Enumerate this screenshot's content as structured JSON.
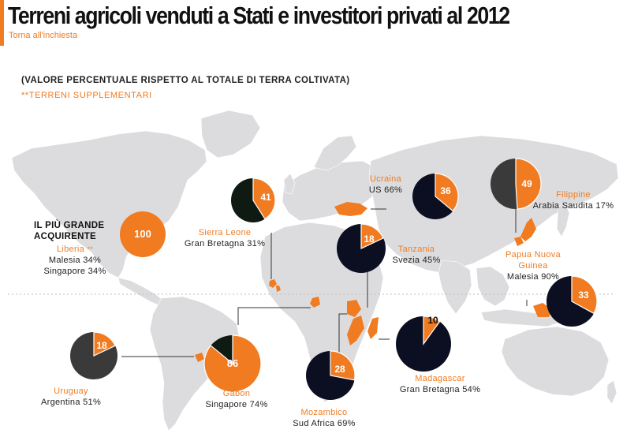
{
  "header": {
    "title": "Terreni agricoli venduti a Stati e investitori privati al 2012",
    "back_link": "Torna all'inchiesta"
  },
  "legend": {
    "subtitle": "(VALORE PERCENTUALE RISPETTO AL TOTALE DI TERRA COLTIVATA)",
    "supplementary": "**TERRENI SUPPLEMENTARI"
  },
  "largest_buyer_label": "IL PIÙ GRANDE ACQUIRENTE",
  "colors": {
    "orange": "#f07b21",
    "navy": "#0c0f22",
    "gray": "#3a3a3a",
    "darkgreen": "#0f1a12",
    "land": "#dcdcde"
  },
  "countries": [
    {
      "name": "Liberia",
      "value": "100",
      "stars": "**",
      "buyers": [
        "Malesia 34%",
        "Singapore 34%"
      ]
    },
    {
      "name": "Sierra Leone",
      "value": "41",
      "buyers": [
        "Gran Bretagna 31%"
      ]
    },
    {
      "name": "Ucraina",
      "value": "36",
      "buyers": [
        "US 66%"
      ]
    },
    {
      "name": "Filippine",
      "value": "49",
      "buyers": [
        "Arabia Saudita 17%"
      ]
    },
    {
      "name": "Tanzania",
      "value": "18",
      "buyers": [
        "Svezia 45%"
      ]
    },
    {
      "name": "Papua Nuova Guinea",
      "value": "33",
      "buyers": [
        "Malesia 90%"
      ]
    },
    {
      "name": "Madagascar",
      "value": "10",
      "buyers": [
        "Gran Bretagna 54%"
      ]
    },
    {
      "name": "Mozambico",
      "value": "28",
      "buyers": [
        "Sud Africa 69%"
      ]
    },
    {
      "name": "Gabon",
      "value": "86",
      "buyers": [
        "Singapore 74%"
      ]
    },
    {
      "name": "Uruguay",
      "value": "18",
      "buyers": [
        "Argentina 51%"
      ]
    }
  ],
  "pies": [
    {
      "country": "Liberia",
      "value": 100,
      "base": "orange",
      "label": "100"
    },
    {
      "country": "Sierra Leone",
      "value": 41,
      "base": "darkgreen",
      "label": "41"
    },
    {
      "country": "Ucraina",
      "value": 36,
      "base": "navy",
      "label": "36"
    },
    {
      "country": "Filippine",
      "value": 49,
      "base": "gray",
      "label": "49"
    },
    {
      "country": "Tanzania",
      "value": 18,
      "base": "navy",
      "label": "18"
    },
    {
      "country": "Papua Nuova Guinea",
      "value": 33,
      "base": "navy",
      "label": "33"
    },
    {
      "country": "Madagascar",
      "value": 10,
      "base": "navy",
      "label": "10"
    },
    {
      "country": "Mozambico",
      "value": 28,
      "base": "navy",
      "label": "28"
    },
    {
      "country": "Gabon",
      "value": 86,
      "base": "darkgreen",
      "label": "86"
    },
    {
      "country": "Uruguay",
      "value": 18,
      "base": "gray",
      "label": "18"
    }
  ]
}
